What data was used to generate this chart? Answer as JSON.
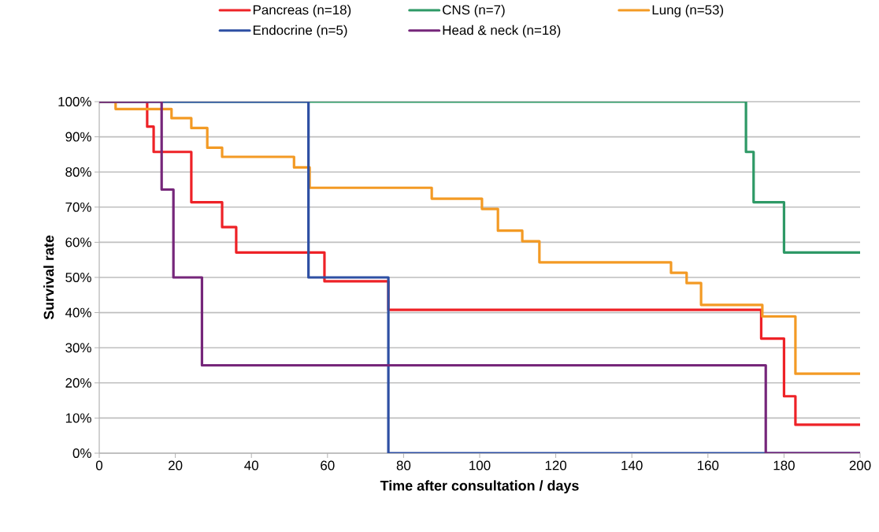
{
  "chart_data": {
    "type": "step",
    "xlabel": "Time after consultation / days",
    "ylabel": "Survival rate",
    "xlim": [
      0,
      200
    ],
    "xticks": [
      0,
      20,
      40,
      60,
      80,
      100,
      120,
      140,
      160,
      180,
      200
    ],
    "ylim": [
      0,
      100
    ],
    "yticks": [
      {
        "value": 0,
        "label": "0%"
      },
      {
        "value": 10,
        "label": "10%"
      },
      {
        "value": 20,
        "label": "20%"
      },
      {
        "value": 30,
        "label": "30%"
      },
      {
        "value": 40,
        "label": "40%"
      },
      {
        "value": 50,
        "label": "50%"
      },
      {
        "value": 60,
        "label": "60%"
      },
      {
        "value": 70,
        "label": "70%"
      },
      {
        "value": 80,
        "label": "80%"
      },
      {
        "value": 90,
        "label": "90%"
      },
      {
        "value": 100,
        "label": "100%"
      }
    ],
    "grid": "y",
    "legend": "top",
    "marker": "none",
    "line_style": "solid",
    "series": [
      {
        "name": "Pancreas (n=18)",
        "color": "#ee2227",
        "x": [
          0,
          12.6,
          14.3,
          24.2,
          32.3,
          36,
          59.2,
          76,
          174,
          180,
          183,
          200
        ],
        "values": [
          100,
          92.9,
          85.7,
          71.4,
          64.3,
          57.1,
          48.9,
          40.8,
          32.6,
          16.2,
          8.1,
          8.1
        ]
      },
      {
        "name": "CNS (n=7)",
        "color": "#2e9966",
        "x": [
          0,
          170,
          172,
          180,
          200
        ],
        "values": [
          100,
          85.7,
          71.4,
          57.1,
          57.1
        ]
      },
      {
        "name": "Lung (n=53)",
        "color": "#f39a24",
        "x": [
          0,
          4.3,
          19,
          24.2,
          28.4,
          32.3,
          51.2,
          55.3,
          87.4,
          100.6,
          104.8,
          111.2,
          115.7,
          150.3,
          154.4,
          158.2,
          174.3,
          183,
          200
        ],
        "values": [
          100,
          97.9,
          95.3,
          92.5,
          86.9,
          84.3,
          81.3,
          75.5,
          72.4,
          69.5,
          63.3,
          60.3,
          54.3,
          51.3,
          48.4,
          42.2,
          38.9,
          22.6,
          22.6
        ]
      },
      {
        "name": "Endocrine (n=5)",
        "color": "#2e4fa3",
        "x": [
          0,
          55,
          76,
          200
        ],
        "values": [
          100,
          50,
          0,
          0
        ]
      },
      {
        "name": "Head & neck (n=18)",
        "color": "#76267a",
        "x": [
          0,
          16.4,
          19.5,
          27,
          175.2,
          200
        ],
        "values": [
          100,
          75,
          50,
          25,
          0,
          0
        ]
      }
    ]
  }
}
